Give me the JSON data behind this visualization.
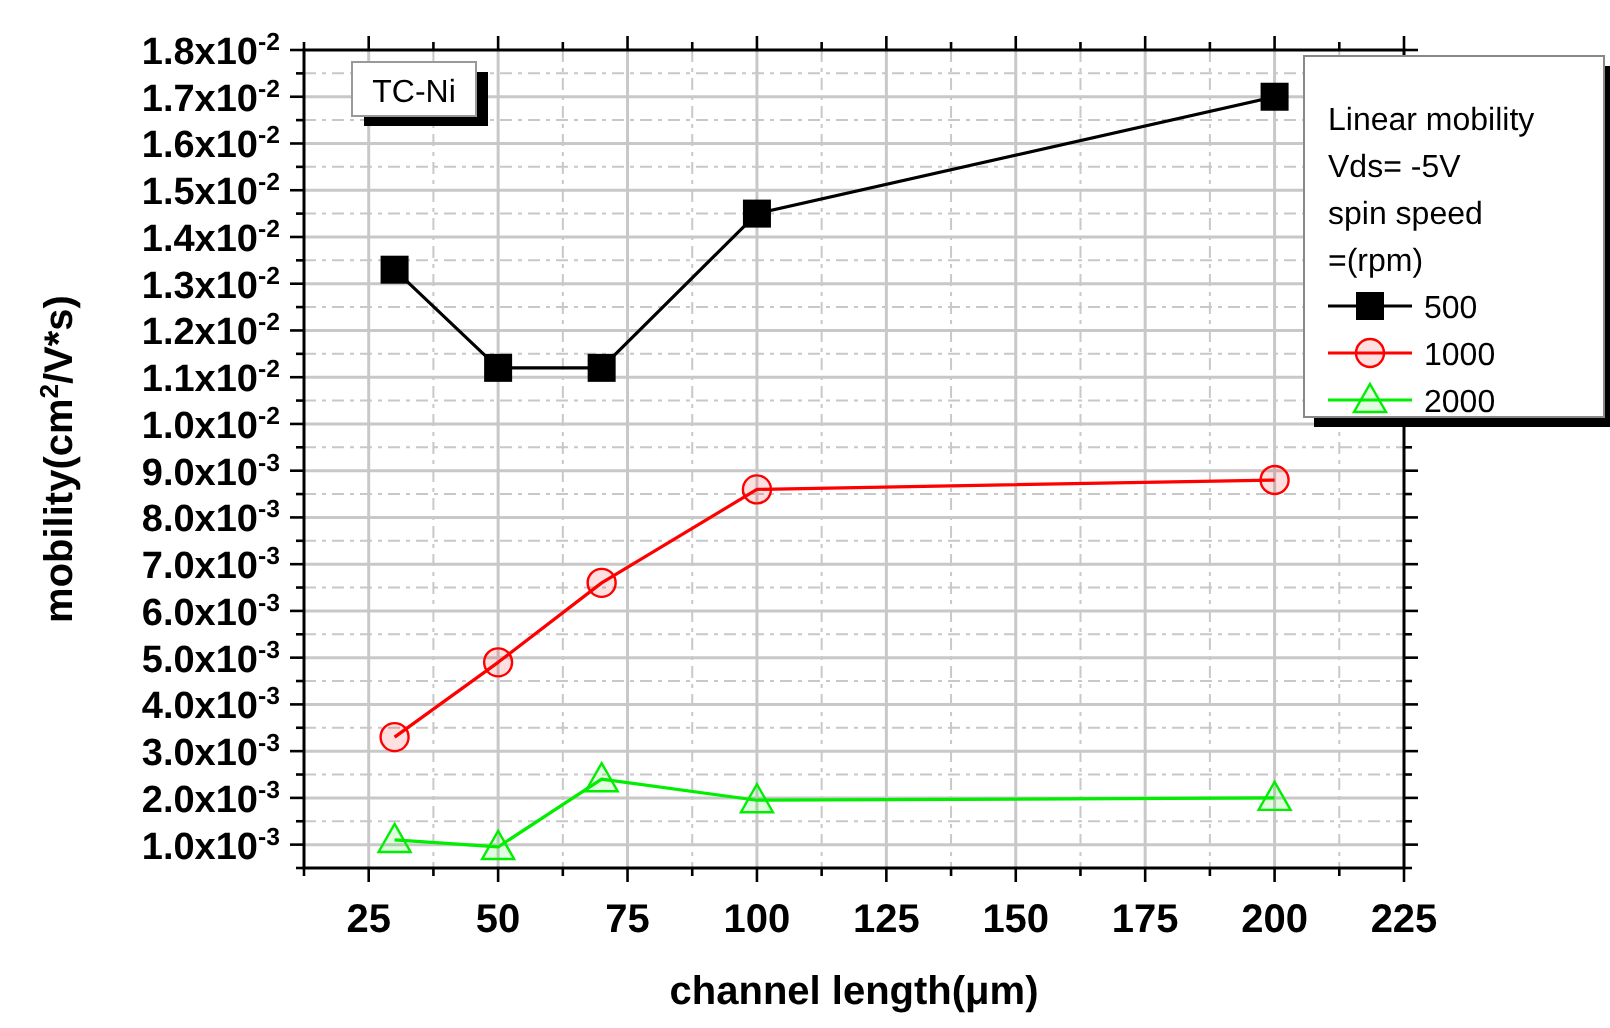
{
  "chart_data": {
    "type": "line",
    "xlabel": "channel length(μm)",
    "ylabel": "mobility(cm$^{2}$/V*s)",
    "legend_title": "Linear mobility\nVds= -5V\nspin speed\n=(rpm)",
    "annotations": [
      "TC-Ni"
    ],
    "x": [
      30,
      50,
      70,
      100,
      200
    ],
    "series": [
      {
        "name": "500",
        "color": "#000000",
        "marker": "square",
        "values": [
          0.0133,
          0.0112,
          0.0112,
          0.0145,
          0.017
        ]
      },
      {
        "name": "1000",
        "color": "#ff0000",
        "marker": "circle",
        "values": [
          0.0033,
          0.0049,
          0.0066,
          0.0086,
          0.0088
        ]
      },
      {
        "name": "2000",
        "color": "#00ee00",
        "marker": "triangle",
        "values": [
          0.0011,
          0.00095,
          0.0024,
          0.00195,
          0.002
        ]
      }
    ],
    "xlim": [
      12.5,
      225
    ],
    "xticks": [
      {
        "value": 12.5,
        "label": null
      },
      25,
      {
        "value": 37.5,
        "label": null
      },
      50,
      {
        "value": 62.5,
        "label": null
      },
      75,
      {
        "value": 87.5,
        "label": null
      },
      100,
      {
        "value": 112.5,
        "label": null
      },
      125,
      {
        "value": 137.5,
        "label": null
      },
      150,
      {
        "value": 162.5,
        "label": null
      },
      175,
      {
        "value": 187.5,
        "label": null
      },
      200,
      {
        "value": 212.5,
        "label": null
      },
      225
    ],
    "ylim": [
      0.0005,
      0.018
    ],
    "yticks": [
      {
        "value": 0.0005,
        "label": null
      },
      {
        "value": 0.001,
        "label": "1.0x10$^{-3}$"
      },
      {
        "value": 0.0015,
        "label": null
      },
      {
        "value": 0.002,
        "label": "2.0x10$^{-3}$"
      },
      {
        "value": 0.0025,
        "label": null
      },
      {
        "value": 0.003,
        "label": "3.0x10$^{-3}$"
      },
      {
        "value": 0.0035,
        "label": null
      },
      {
        "value": 0.004,
        "label": "4.0x10$^{-3}$"
      },
      {
        "value": 0.0045,
        "label": null
      },
      {
        "value": 0.005,
        "label": "5.0x10$^{-3}$"
      },
      {
        "value": 0.0055,
        "label": null
      },
      {
        "value": 0.006,
        "label": "6.0x10$^{-3}$"
      },
      {
        "value": 0.0065,
        "label": null
      },
      {
        "value": 0.007,
        "label": "7.0x10$^{-3}$"
      },
      {
        "value": 0.0075,
        "label": null
      },
      {
        "value": 0.008,
        "label": "8.0x10$^{-3}$"
      },
      {
        "value": 0.0085,
        "label": null
      },
      {
        "value": 0.009,
        "label": "9.0x10$^{-3}$"
      },
      {
        "value": 0.0095,
        "label": null
      },
      {
        "value": 0.01,
        "label": "1.0x10$^{-2}$"
      },
      {
        "value": 0.0105,
        "label": null
      },
      {
        "value": 0.011,
        "label": "1.1x10$^{-2}$"
      },
      {
        "value": 0.0115,
        "label": null
      },
      {
        "value": 0.012,
        "label": "1.2x10$^{-2}$"
      },
      {
        "value": 0.0125,
        "label": null
      },
      {
        "value": 0.013,
        "label": "1.3x10$^{-2}$"
      },
      {
        "value": 0.0135,
        "label": null
      },
      {
        "value": 0.014,
        "label": "1.4x10$^{-2}$"
      },
      {
        "value": 0.0145,
        "label": null
      },
      {
        "value": 0.015,
        "label": "1.5x10$^{-2}$"
      },
      {
        "value": 0.0155,
        "label": null
      },
      {
        "value": 0.016,
        "label": "1.6x10$^{-2}$"
      },
      {
        "value": 0.0165,
        "label": null
      },
      {
        "value": 0.017,
        "label": "1.7x10$^{-2}$"
      },
      {
        "value": 0.0175,
        "label": null
      },
      {
        "value": 0.018,
        "label": "1.8x10$^{-2}$"
      }
    ],
    "grid": true,
    "legend": "top right",
    "line_style": "solid"
  }
}
